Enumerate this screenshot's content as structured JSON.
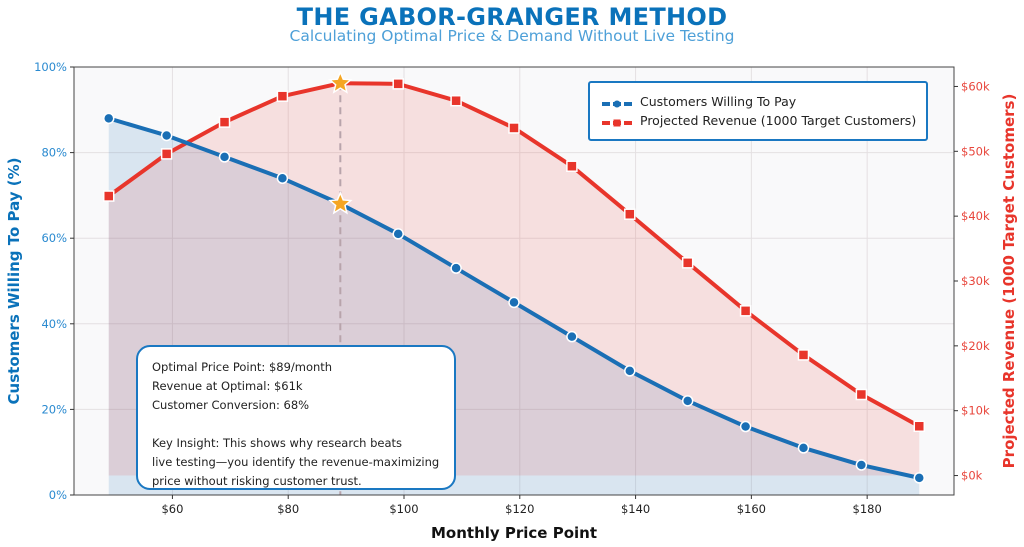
{
  "header": {
    "title": "THE GABOR-GRANGER METHOD",
    "subtitle": "Calculating Optimal Price & Demand Without Live Testing"
  },
  "axes": {
    "x_label": "Monthly Price Point",
    "y_left_label": "Customers Willing To Pay (%)",
    "y_right_label": "Projected Revenue (1000 Target Customers)",
    "x_ticks": [
      "$60",
      "$80",
      "$100",
      "$120",
      "$140",
      "$160",
      "$180"
    ],
    "y_left_ticks": [
      "0%",
      "20%",
      "40%",
      "60%",
      "80%",
      "100%"
    ],
    "y_right_ticks": [
      "$0k",
      "$10k",
      "$20k",
      "$30k",
      "$40k",
      "$50k",
      "$60k"
    ]
  },
  "legend": {
    "items": [
      {
        "label": "Customers Willing To Pay",
        "color": "#1a6fb5",
        "marker": "circle"
      },
      {
        "label": "Projected Revenue (1000 Target Customers)",
        "color": "#e8352b",
        "marker": "square"
      }
    ]
  },
  "info_box": {
    "line1": "Optimal Price Point: $89/month",
    "line2": "Revenue at Optimal: $61k",
    "line3": "Customer Conversion: 68%",
    "insight1": "Key Insight: This shows why research beats",
    "insight2": "live testing—you identify the revenue-maximizing",
    "insight3": "price without risking customer trust."
  },
  "colors": {
    "blue": "#1a6fb5",
    "red": "#e8352b",
    "star": "#f5a623",
    "plot_bg": "#f9f9fa"
  },
  "chart_data": {
    "type": "line",
    "title": "THE GABOR-GRANGER METHOD",
    "subtitle": "Calculating Optimal Price & Demand Without Live Testing",
    "xlabel": "Monthly Price Point",
    "ylabel": "Customers Willing To Pay (%)",
    "ylabel_right": "Projected Revenue (1000 Target Customers)",
    "x": [
      49,
      59,
      69,
      79,
      89,
      99,
      109,
      119,
      129,
      139,
      149,
      159,
      169,
      179,
      189
    ],
    "series": [
      {
        "name": "Customers Willing To Pay",
        "axis": "left",
        "unit": "%",
        "values": [
          88,
          84,
          79,
          74,
          68,
          61,
          53,
          45,
          37,
          29,
          22,
          16,
          11,
          7,
          4
        ]
      },
      {
        "name": "Projected Revenue (1000 Target Customers)",
        "axis": "right",
        "unit": "$k",
        "values": [
          43.1,
          49.6,
          54.5,
          58.5,
          60.5,
          60.4,
          57.8,
          53.6,
          47.7,
          40.3,
          32.8,
          25.4,
          18.6,
          12.5,
          7.6
        ]
      }
    ],
    "ylim": [
      0,
      100
    ],
    "ylim_right": [
      -3,
      63
    ],
    "xlim": [
      43,
      195
    ],
    "grid": true,
    "legend_position": "upper right",
    "annotations": [
      {
        "type": "star",
        "x": 89,
        "series": "Customers Willing To Pay",
        "y": 68
      },
      {
        "type": "star",
        "x": 89,
        "series": "Projected Revenue (1000 Target Customers)",
        "y": 60.5
      },
      {
        "type": "vline",
        "x": 89,
        "style": "dashed"
      }
    ],
    "optimal": {
      "price": 89,
      "revenue_k": 61,
      "conversion_pct": 68
    }
  }
}
